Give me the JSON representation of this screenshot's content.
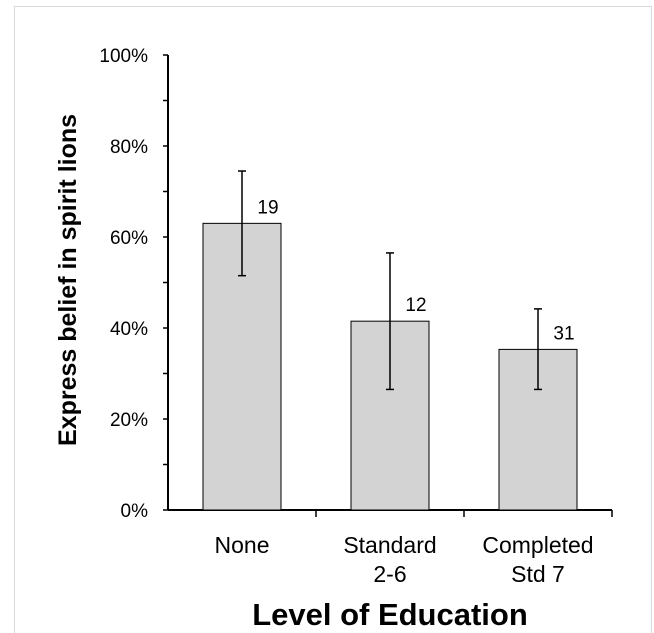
{
  "chart_data": {
    "type": "bar",
    "title": "",
    "xlabel": "Level of Education",
    "ylabel": "Express belief in spirit lions",
    "categories": [
      [
        "None"
      ],
      [
        "Standard",
        "2-6"
      ],
      [
        "Completed",
        "Std 7"
      ]
    ],
    "values": [
      63,
      41.5,
      35.3
    ],
    "error_low": [
      51.5,
      26.5,
      26.5
    ],
    "error_high": [
      74.5,
      56.5,
      44.2
    ],
    "data_labels": [
      "19",
      "12",
      "31"
    ],
    "ylim": [
      0,
      100
    ],
    "yticks": [
      0,
      20,
      40,
      60,
      80,
      100
    ],
    "ytick_labels": [
      "0%",
      "20%",
      "40%",
      "60%",
      "80%",
      "100%"
    ],
    "grid": false,
    "bar_color": "#d3d3d3"
  }
}
